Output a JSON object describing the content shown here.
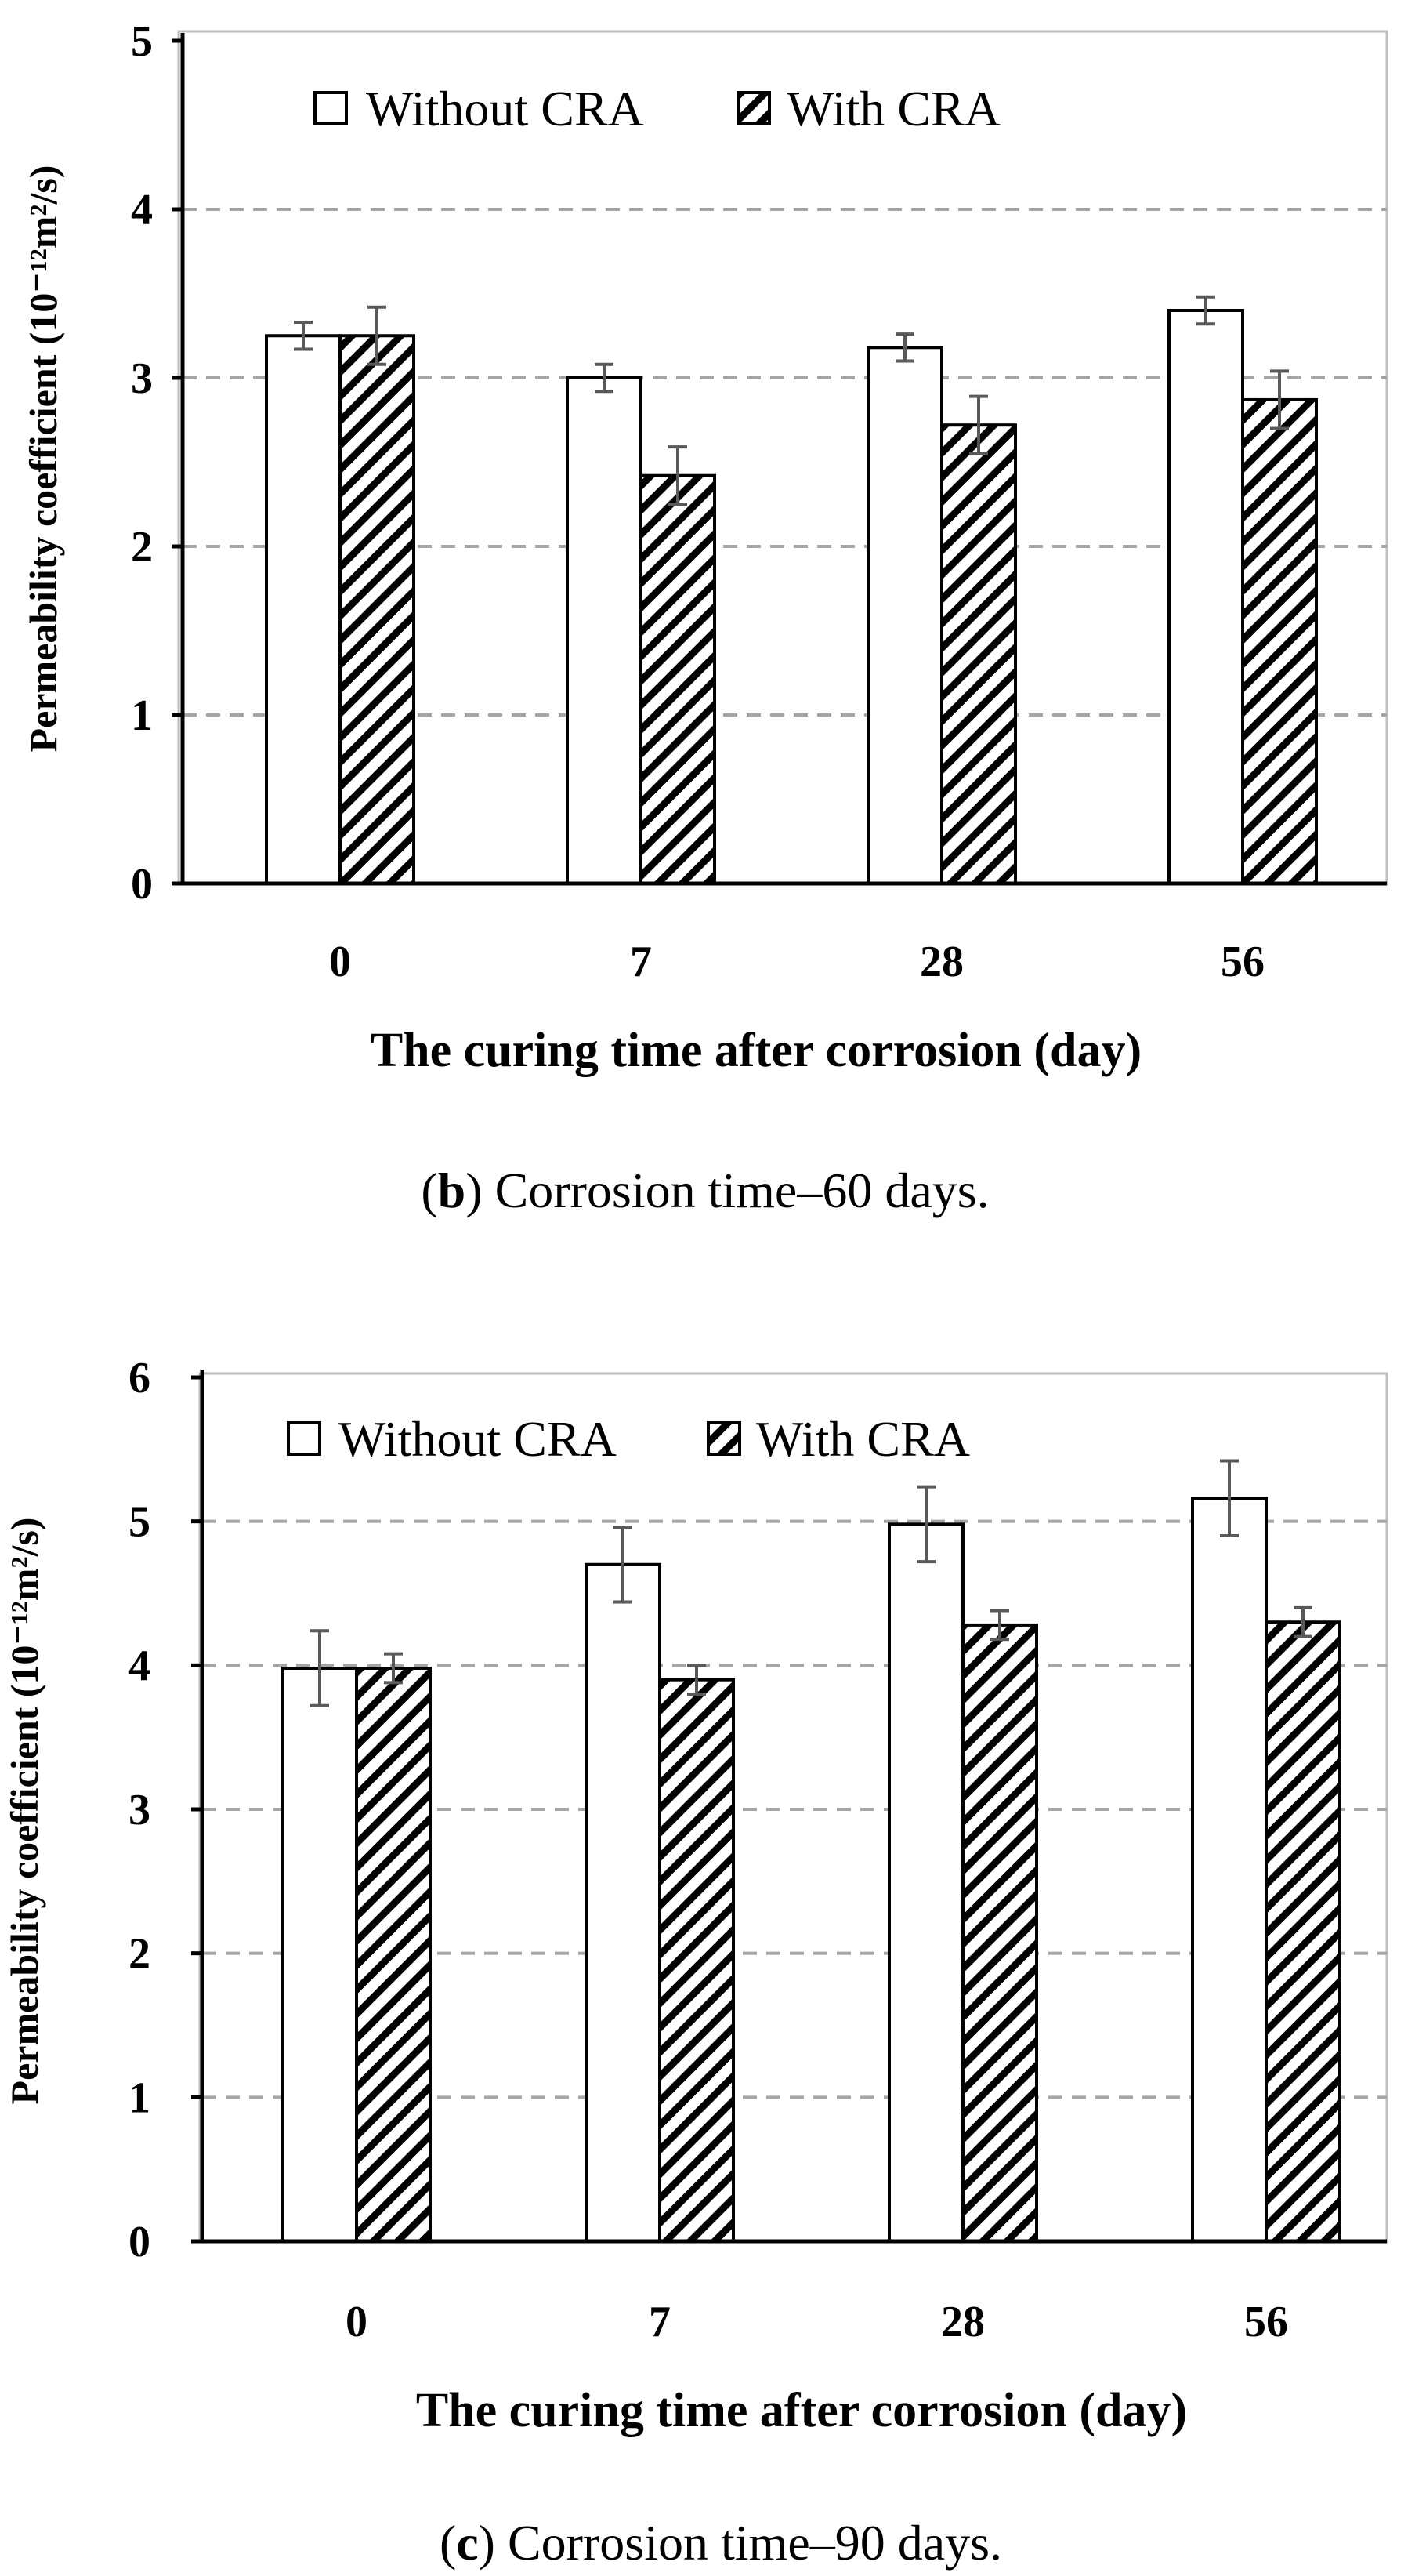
{
  "chart_data": [
    {
      "type": "bar",
      "categories": [
        "0",
        "7",
        "28",
        "56"
      ],
      "series": [
        {
          "name": "Without CRA",
          "values": [
            3.25,
            3.0,
            3.18,
            3.4
          ],
          "errors": [
            0.08,
            0.08,
            0.08,
            0.08
          ]
        },
        {
          "name": "With CRA",
          "values": [
            3.25,
            2.42,
            2.72,
            2.87
          ],
          "errors": [
            0.17,
            0.17,
            0.17,
            0.17
          ]
        }
      ],
      "xlabel": "The curing time after corrosion (day)",
      "ylabel": "Permeability coefficient (10⁻¹²m²/s)",
      "ylim": [
        0,
        5
      ],
      "yticks": [
        "0",
        "1",
        "2",
        "3",
        "4",
        "5"
      ],
      "grid": "horizontal dashed",
      "legend": "top-left",
      "caption_letter": "b",
      "caption_rest": ") Corrosion time–60 days.",
      "caption_open": "("
    },
    {
      "type": "bar",
      "categories": [
        "0",
        "7",
        "28",
        "56"
      ],
      "series": [
        {
          "name": "Without CRA",
          "values": [
            3.98,
            4.7,
            4.98,
            5.16
          ],
          "errors": [
            0.26,
            0.26,
            0.26,
            0.26
          ]
        },
        {
          "name": "With CRA",
          "values": [
            3.98,
            3.9,
            4.28,
            4.3
          ],
          "errors": [
            0.1,
            0.1,
            0.1,
            0.1
          ]
        }
      ],
      "xlabel": "The curing time after corrosion (day)",
      "ylabel": "Permeability coefficient (10⁻¹²m²/s)",
      "ylim": [
        0,
        6
      ],
      "yticks": [
        "0",
        "1",
        "2",
        "3",
        "4",
        "5",
        "6"
      ],
      "grid": "horizontal dashed",
      "legend": "top-left",
      "caption_letter": "c",
      "caption_rest": ") Corrosion time–90 days.",
      "caption_open": "("
    }
  ],
  "colors": {
    "bar_without": "#ffffff",
    "bar_with_hatch": "#000000",
    "grid": "#a6a6a6",
    "errorbar": "#595959",
    "axis": "#000000",
    "frame": "#bfbfbf"
  }
}
